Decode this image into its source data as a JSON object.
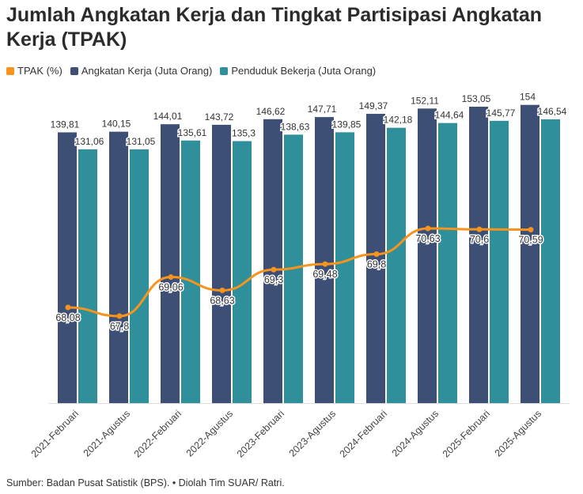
{
  "title": "Jumlah Angkatan Kerja dan Tingkat Partisipasi Angkatan Kerja (TPAK)",
  "source": "Sumber: Badan Pusat Satistik (BPS). • Diolah Tim SUAR/ Ratri.",
  "colors": {
    "tpak": "#f7941d",
    "angkatan": "#3d4f75",
    "penduduk": "#2f8f9b"
  },
  "chart_data": {
    "type": "bar",
    "title": "Jumlah Angkatan Kerja dan Tingkat Partisipasi Angkatan Kerja (TPAK)",
    "legend_position": "top-left",
    "grid": false,
    "categories": [
      "2021-Februari",
      "2021-Agustus",
      "2022-Februari",
      "2022-Agustus",
      "2023-Februari",
      "2023-Agustus",
      "2024-Februari",
      "2024-Agustus",
      "2025-Februari",
      "2025-Agustus"
    ],
    "category_labels": [
      "2021-Februari",
      "2021-Agustus",
      "2022-Februari",
      "2022-Agustus",
      "2023-Februari",
      "2023-Agustus",
      "2024-Februari",
      "2024-Agustus",
      "2025-Februari",
      "2025-Agustus"
    ],
    "series": [
      {
        "name": "TPAK (%)",
        "type": "line",
        "values": [
          68.08,
          67.8,
          69.06,
          68.63,
          69.3,
          69.48,
          69.8,
          70.63,
          70.6,
          70.59
        ],
        "labels": [
          "68,08",
          "67,8",
          "69,06",
          "68,63",
          "69,3",
          "69,48",
          "69,8",
          "70,63",
          "70,6",
          "70,59"
        ]
      },
      {
        "name": "Angkatan Kerja (Juta Orang)",
        "type": "bar",
        "values": [
          139.81,
          140.15,
          144.01,
          143.72,
          146.62,
          147.71,
          149.37,
          152.11,
          153.05,
          154
        ],
        "labels": [
          "139,81",
          "140,15",
          "144,01",
          "143,72",
          "146,62",
          "147,71",
          "149,37",
          "152,11",
          "153,05",
          "154"
        ]
      },
      {
        "name": "Penduduk Bekerja (Juta Orang)",
        "type": "bar",
        "values": [
          131.06,
          131.05,
          135.61,
          135.3,
          138.63,
          139.85,
          142.18,
          144.64,
          145.77,
          146.54
        ],
        "labels": [
          "131,06",
          "131,05",
          "135,61",
          "135,3",
          "138,63",
          "139,85",
          "142,18",
          "144,64",
          "145,77",
          "146,54"
        ]
      }
    ]
  }
}
